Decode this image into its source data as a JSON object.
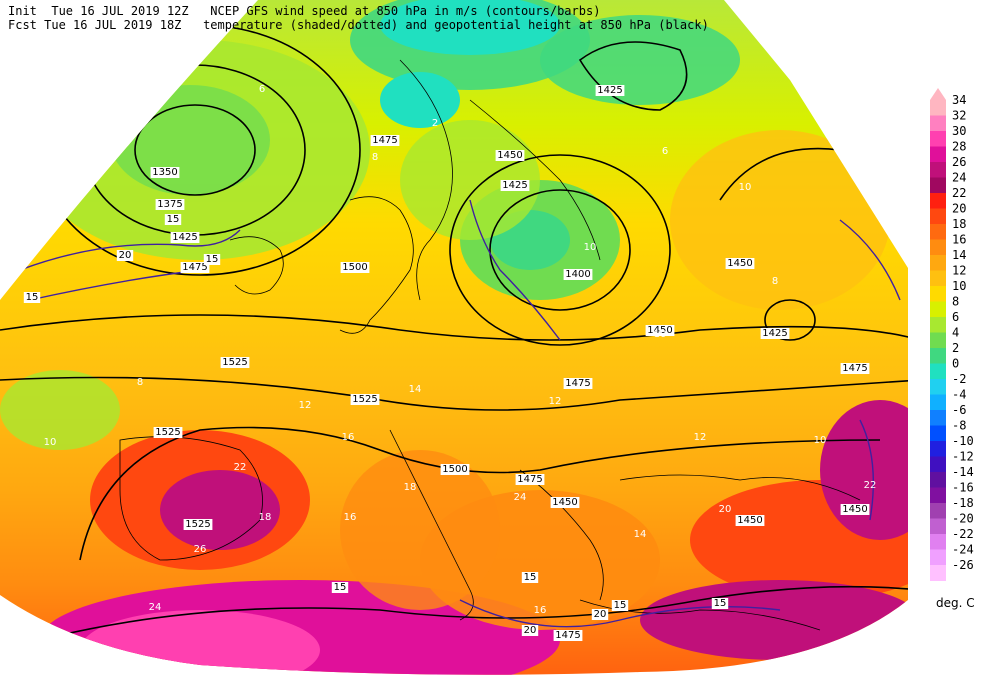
{
  "header": {
    "init_line": "Init  Tue 16 JUL 2019 12Z   NCEP GFS wind speed at 850 hPa in m/s (contours/barbs)",
    "fcst_line": "Fcst Tue 16 JUL 2019 18Z   temperature (shaded/dotted) and geopotential height at 850 hPa (black)"
  },
  "legend": {
    "units": "deg. C",
    "levels": [
      {
        "value": "34",
        "color": "#ffb6c1"
      },
      {
        "value": "32",
        "color": "#ff80c0"
      },
      {
        "value": "30",
        "color": "#ff40b0"
      },
      {
        "value": "28",
        "color": "#e0109a"
      },
      {
        "value": "26",
        "color": "#c0107a"
      },
      {
        "value": "24",
        "color": "#a00860"
      },
      {
        "value": "22",
        "color": "#ff2010"
      },
      {
        "value": "20",
        "color": "#ff4810"
      },
      {
        "value": "18",
        "color": "#ff6a10"
      },
      {
        "value": "16",
        "color": "#ff8c10"
      },
      {
        "value": "14",
        "color": "#ffa810"
      },
      {
        "value": "12",
        "color": "#ffc010"
      },
      {
        "value": "10",
        "color": "#ffda00"
      },
      {
        "value": "8",
        "color": "#d8f000"
      },
      {
        "value": "6",
        "color": "#a8e830"
      },
      {
        "value": "4",
        "color": "#70dc50"
      },
      {
        "value": "2",
        "color": "#40d880"
      },
      {
        "value": "0",
        "color": "#20e0c0"
      },
      {
        "value": "-2",
        "color": "#20d0f0"
      },
      {
        "value": "-4",
        "color": "#10b0ff"
      },
      {
        "value": "-6",
        "color": "#1080ff"
      },
      {
        "value": "-8",
        "color": "#0050ff"
      },
      {
        "value": "-10",
        "color": "#2020e0"
      },
      {
        "value": "-12",
        "color": "#4010c0"
      },
      {
        "value": "-14",
        "color": "#6010a0"
      },
      {
        "value": "-16",
        "color": "#8010a0"
      },
      {
        "value": "-18",
        "color": "#a040b0"
      },
      {
        "value": "-20",
        "color": "#c060d0"
      },
      {
        "value": "-22",
        "color": "#e080f0"
      },
      {
        "value": "-24",
        "color": "#f0a0ff"
      },
      {
        "value": "-26",
        "color": "#ffc0ff"
      }
    ]
  },
  "map": {
    "height_labels": [
      "1425",
      "1475",
      "1450",
      "1425",
      "1350",
      "1375",
      "1425",
      "1475",
      "1500",
      "1400",
      "1450",
      "1425",
      "1450",
      "1475",
      "1525",
      "1525",
      "1475",
      "1525",
      "1500",
      "1475",
      "1450",
      "1450",
      "1450",
      "1525",
      "1475"
    ],
    "wind_labels": [
      "15",
      "20",
      "15",
      "15",
      "20",
      "15",
      "15",
      "15",
      "15",
      "20"
    ],
    "temp_labels": [
      "6",
      "2",
      "6",
      "8",
      "10",
      "10",
      "8",
      "8",
      "10",
      "10",
      "12",
      "12",
      "14",
      "16",
      "18",
      "22",
      "24",
      "26",
      "18",
      "16",
      "14",
      "12",
      "10",
      "20",
      "22",
      "24",
      "16"
    ]
  }
}
